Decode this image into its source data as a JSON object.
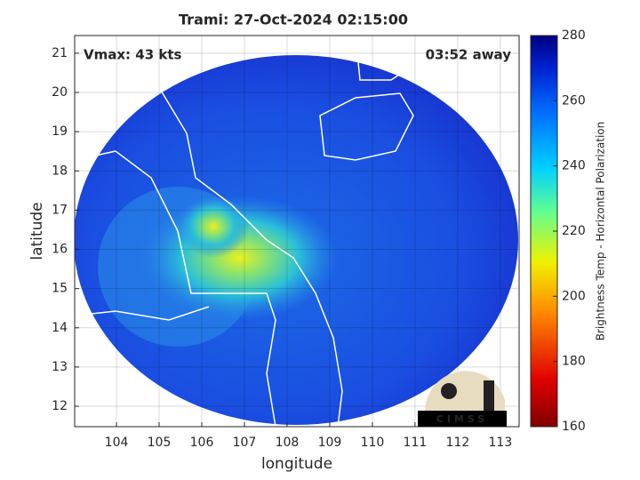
{
  "map": {
    "title": "Trami: 27-Oct-2024 02:15:00",
    "xlabel": "longitude",
    "ylabel": "latitude",
    "xlim": [
      103.02,
      113.44
    ],
    "ylim": [
      11.48,
      21.45
    ],
    "xticks": [
      104,
      105,
      106,
      107,
      108,
      109,
      110,
      111,
      112,
      113
    ],
    "yticks": [
      12,
      13,
      14,
      15,
      16,
      17,
      18,
      19,
      20,
      21
    ],
    "grid": true,
    "annotations": {
      "left": "Vmax: 43 kts",
      "right": "03:52 away"
    },
    "logo": "CIMSS",
    "colorbar": {
      "label": "Brightness Temp - Horizontal Polarization",
      "lim": [
        160,
        280
      ],
      "ticks": [
        160,
        180,
        200,
        220,
        240,
        260,
        280
      ]
    }
  }
}
